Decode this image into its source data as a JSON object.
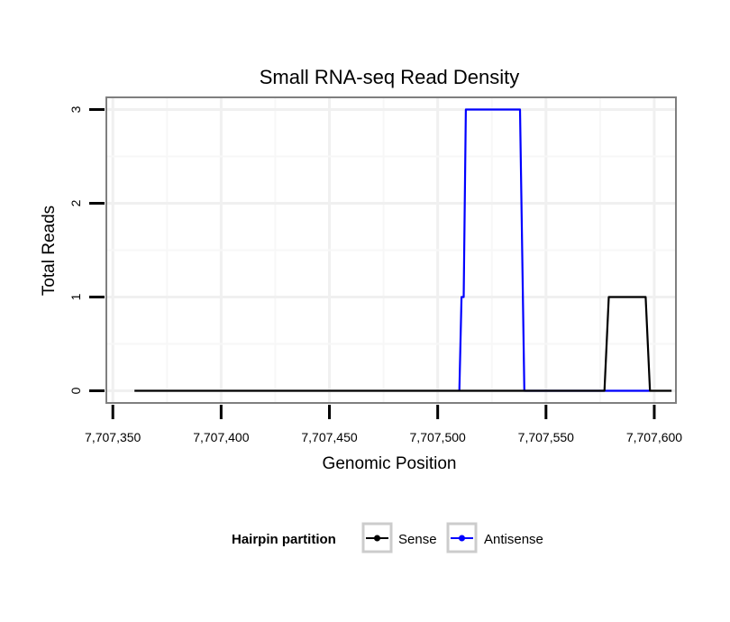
{
  "chart_data": {
    "type": "line",
    "title": "Small RNA-seq Read Density",
    "xlabel": "Genomic Position",
    "ylabel": "Total Reads",
    "xlim": [
      7707347,
      7707610
    ],
    "ylim": [
      -0.13,
      3.13
    ],
    "x_ticks": [
      7707350,
      7707400,
      7707450,
      7707500,
      7707550,
      7707600
    ],
    "x_tick_labels": [
      "7,707,350",
      "7,707,400",
      "7,707,450",
      "7,707,500",
      "7,707,550",
      "7,707,600"
    ],
    "y_ticks": [
      0,
      1,
      2,
      3
    ],
    "y_tick_labels": [
      "0",
      "1",
      "2",
      "3"
    ],
    "grid": true,
    "legend": {
      "title": "Hairpin partition",
      "position": "bottom",
      "entries": [
        "Sense",
        "Antisense"
      ]
    },
    "series": [
      {
        "name": "Sense",
        "color": "#000000",
        "x": [
          7707360,
          7707577,
          7707579,
          7707596,
          7707598,
          7707608
        ],
        "y": [
          0,
          0,
          1,
          1,
          0,
          0
        ]
      },
      {
        "name": "Antisense",
        "color": "#0000ff",
        "x": [
          7707510,
          7707511,
          7707512,
          7707513,
          7707538,
          7707540,
          7707577,
          7707579,
          7707596,
          7707598
        ],
        "y": [
          0,
          1,
          1,
          3,
          3,
          0,
          0,
          0,
          0,
          0
        ]
      }
    ]
  }
}
